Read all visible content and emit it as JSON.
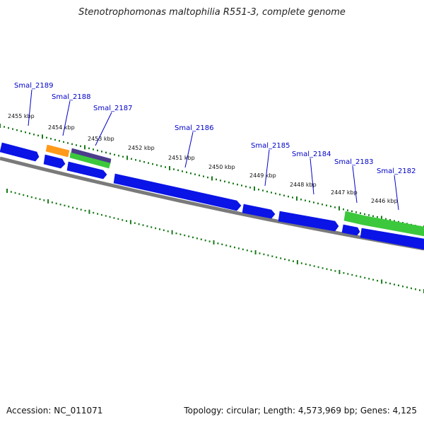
{
  "title": "Stenotrophomonas maltophilia R551-3, complete genome",
  "footer": {
    "accession": "Accession: NC_011071",
    "summary": "Topology: circular; Length: 4,573,969 bp; Genes: 4,125"
  },
  "colors": {
    "gene_blue": "#0a14e6",
    "gene_orange": "#ff9a1a",
    "gene_green": "#3cc83c",
    "gene_purple": "#4b3c8c",
    "backbone": "#7a7a7a",
    "tick_green": "#1a7a1a",
    "label_blue": "#0000c8"
  },
  "kbp_labels": [
    "2455 kbp",
    "2454 kbp",
    "2453 kbp",
    "2452 kbp",
    "2451 kbp",
    "2450 kbp",
    "2449 kbp",
    "2448 kbp",
    "2447 kbp",
    "2446 kbp"
  ],
  "gene_labels": [
    "Smal_2189",
    "Smal_2188",
    "Smal_2187",
    "Smal_2186",
    "Smal_2185",
    "Smal_2184",
    "Smal_2183",
    "Smal_2182"
  ]
}
